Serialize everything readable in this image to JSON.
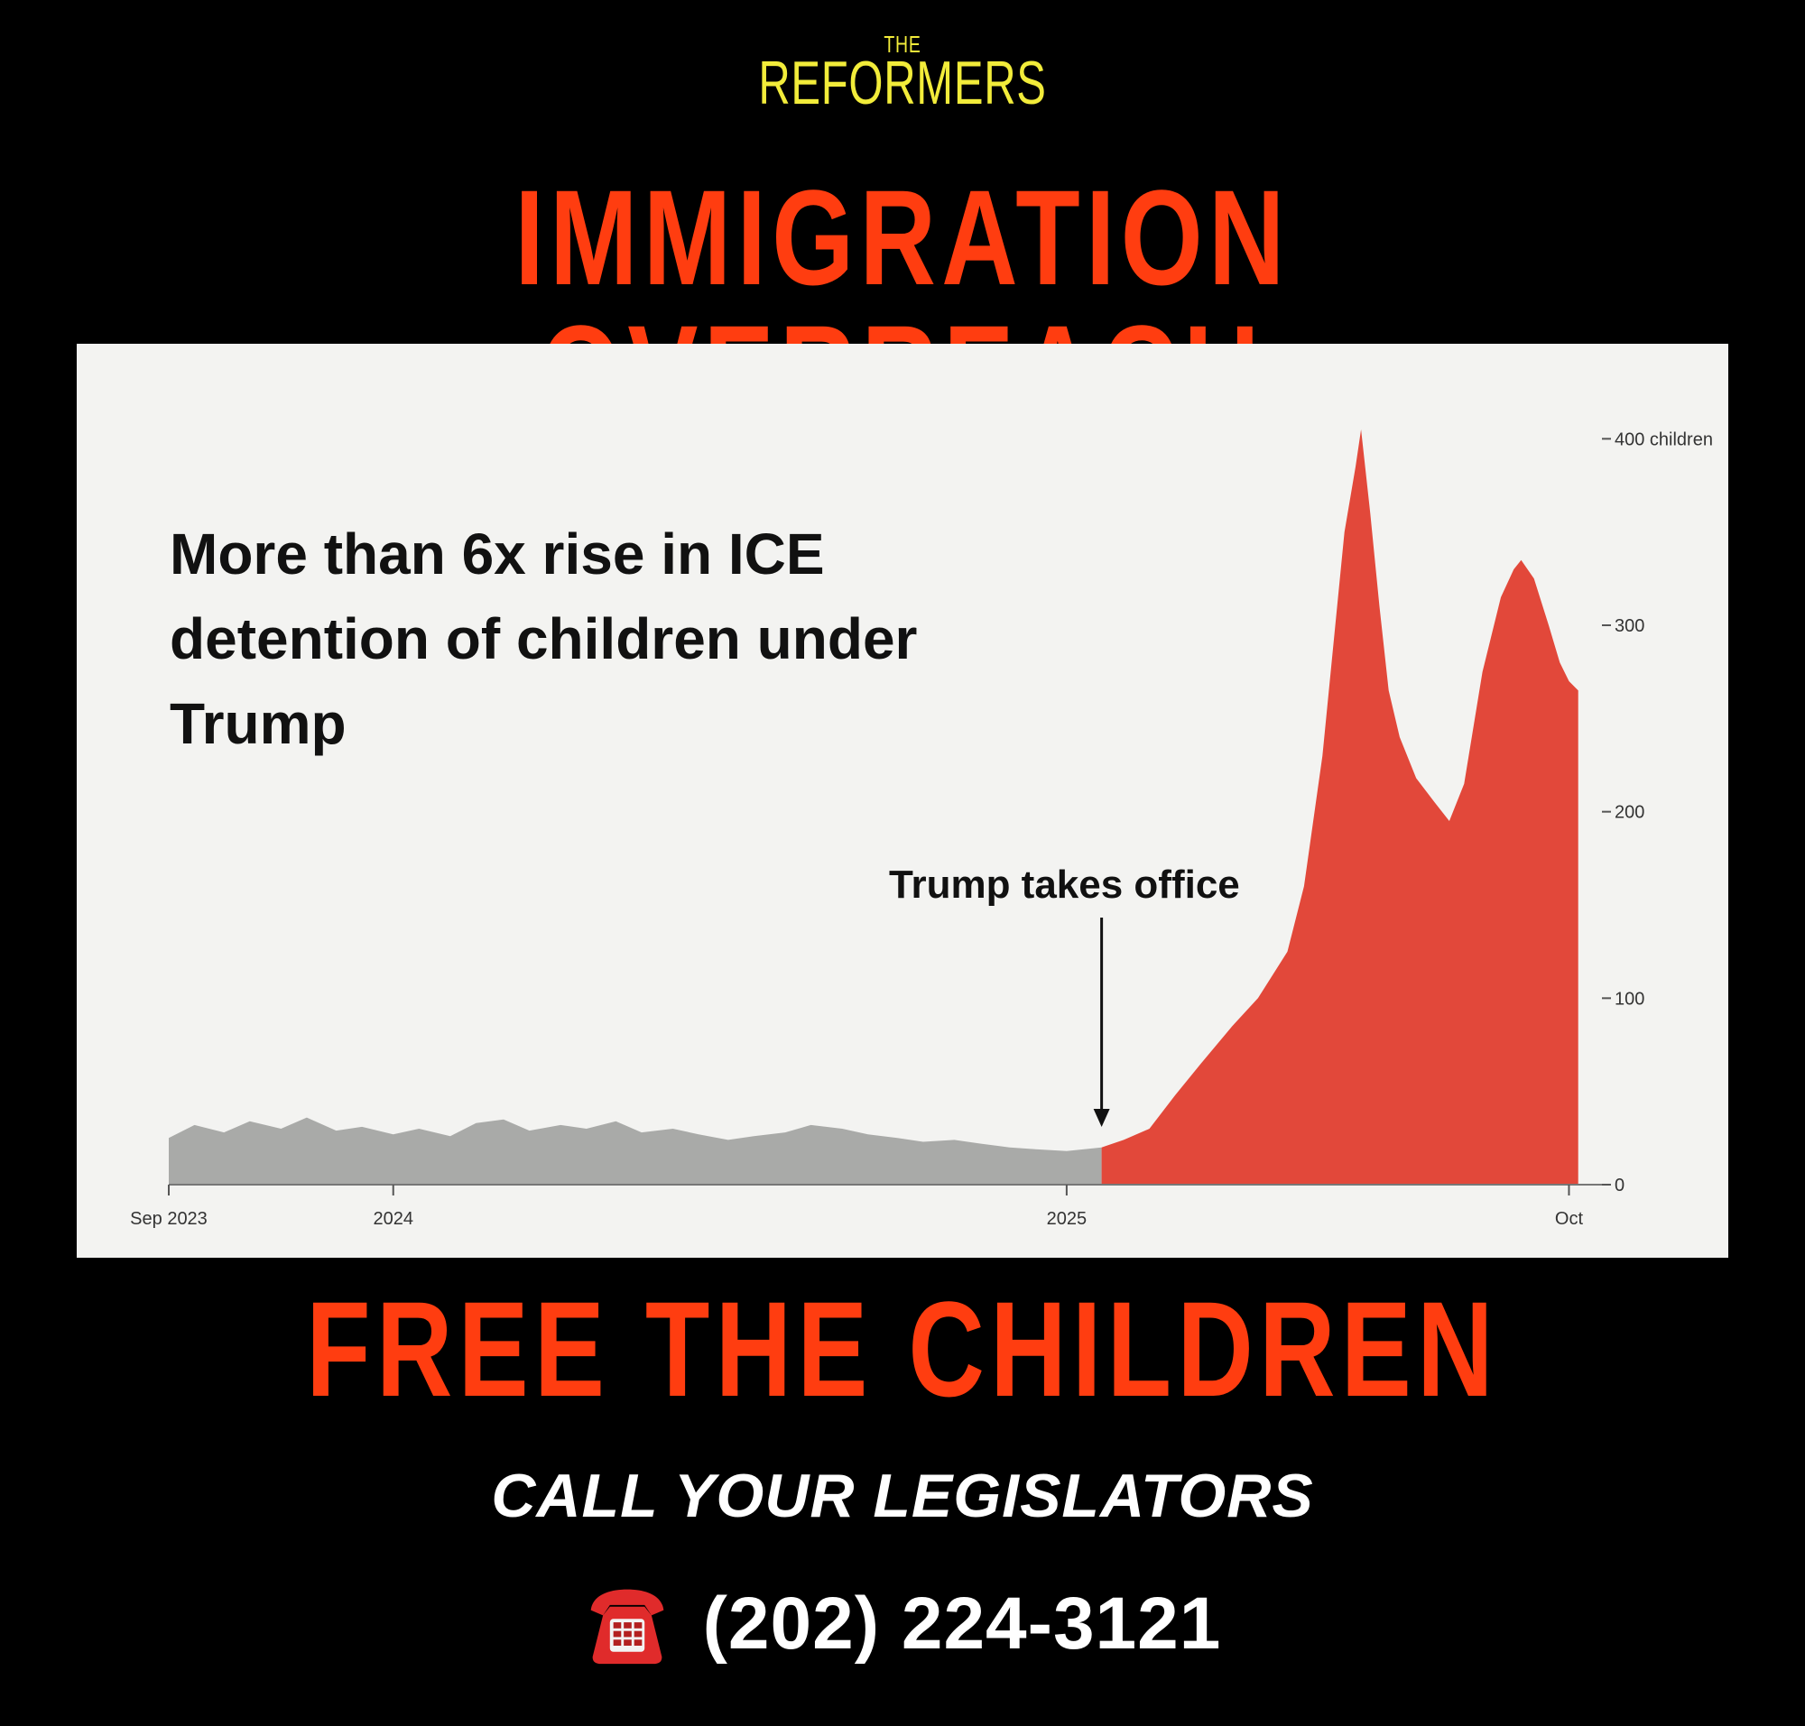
{
  "brand": {
    "prefix": "THE",
    "name": "REFORMERS"
  },
  "headline": "IMMIGRATION OVERREACH",
  "cta": "FREE THE CHILDREN",
  "call_label": "CALL YOUR LEGISLATORS",
  "phone": {
    "icon": "telephone-icon",
    "number": "(202) 224-3121"
  },
  "colors": {
    "background": "#000000",
    "headline": "#ff3d10",
    "brand": "#f2ec3a",
    "before": "#a9aaa8",
    "after": "#e2483a"
  },
  "chart_data": {
    "type": "area",
    "title": "More than 6x rise in ICE detention of children under Trump",
    "annotation": {
      "text": "Trump takes office",
      "date": "2025-01-20"
    },
    "x_range": [
      "2023-09-01",
      "2025-10-15"
    ],
    "x_ticks": [
      {
        "date": "2023-09-01",
        "label": "Sep 2023"
      },
      {
        "date": "2024-01-01",
        "label": "2024"
      },
      {
        "date": "2025-01-01",
        "label": "2025"
      },
      {
        "date": "2025-10-01",
        "label": "Oct"
      }
    ],
    "y_ticks": [
      {
        "value": 0,
        "label": "0"
      },
      {
        "value": 100,
        "label": "100"
      },
      {
        "value": 200,
        "label": "200"
      },
      {
        "value": 300,
        "label": "300"
      },
      {
        "value": 400,
        "label": "400 children"
      }
    ],
    "ylim": [
      0,
      420
    ],
    "grid": false,
    "series": [
      {
        "colorKey": "before",
        "values": [
          [
            "2023-09-01",
            25
          ],
          [
            "2023-09-15",
            32
          ],
          [
            "2023-10-01",
            28
          ],
          [
            "2023-10-15",
            34
          ],
          [
            "2023-11-01",
            30
          ],
          [
            "2023-11-15",
            36
          ],
          [
            "2023-12-01",
            29
          ],
          [
            "2023-12-15",
            31
          ],
          [
            "2024-01-01",
            27
          ],
          [
            "2024-01-15",
            30
          ],
          [
            "2024-02-01",
            26
          ],
          [
            "2024-02-15",
            33
          ],
          [
            "2024-03-01",
            35
          ],
          [
            "2024-03-15",
            29
          ],
          [
            "2024-04-01",
            32
          ],
          [
            "2024-04-15",
            30
          ],
          [
            "2024-05-01",
            34
          ],
          [
            "2024-05-15",
            28
          ],
          [
            "2024-06-01",
            30
          ],
          [
            "2024-06-15",
            27
          ],
          [
            "2024-07-01",
            24
          ],
          [
            "2024-07-15",
            26
          ],
          [
            "2024-08-01",
            28
          ],
          [
            "2024-08-15",
            32
          ],
          [
            "2024-09-01",
            30
          ],
          [
            "2024-09-15",
            27
          ],
          [
            "2024-10-01",
            25
          ],
          [
            "2024-10-15",
            23
          ],
          [
            "2024-11-01",
            24
          ],
          [
            "2024-11-15",
            22
          ],
          [
            "2024-12-01",
            20
          ],
          [
            "2024-12-15",
            19
          ],
          [
            "2025-01-01",
            18
          ],
          [
            "2025-01-20",
            20
          ]
        ]
      },
      {
        "colorKey": "after",
        "values": [
          [
            "2025-01-20",
            20
          ],
          [
            "2025-02-01",
            24
          ],
          [
            "2025-02-15",
            30
          ],
          [
            "2025-03-01",
            48
          ],
          [
            "2025-03-15",
            65
          ],
          [
            "2025-04-01",
            85
          ],
          [
            "2025-04-15",
            100
          ],
          [
            "2025-05-01",
            125
          ],
          [
            "2025-05-10",
            160
          ],
          [
            "2025-05-20",
            230
          ],
          [
            "2025-06-01",
            350
          ],
          [
            "2025-06-07",
            385
          ],
          [
            "2025-06-10",
            405
          ],
          [
            "2025-06-15",
            360
          ],
          [
            "2025-06-20",
            310
          ],
          [
            "2025-06-25",
            265
          ],
          [
            "2025-07-01",
            240
          ],
          [
            "2025-07-10",
            218
          ],
          [
            "2025-07-20",
            205
          ],
          [
            "2025-07-28",
            195
          ],
          [
            "2025-08-05",
            215
          ],
          [
            "2025-08-15",
            275
          ],
          [
            "2025-08-25",
            315
          ],
          [
            "2025-09-01",
            330
          ],
          [
            "2025-09-05",
            335
          ],
          [
            "2025-09-12",
            325
          ],
          [
            "2025-09-20",
            300
          ],
          [
            "2025-09-26",
            280
          ],
          [
            "2025-10-01",
            270
          ],
          [
            "2025-10-06",
            265
          ]
        ]
      }
    ]
  }
}
